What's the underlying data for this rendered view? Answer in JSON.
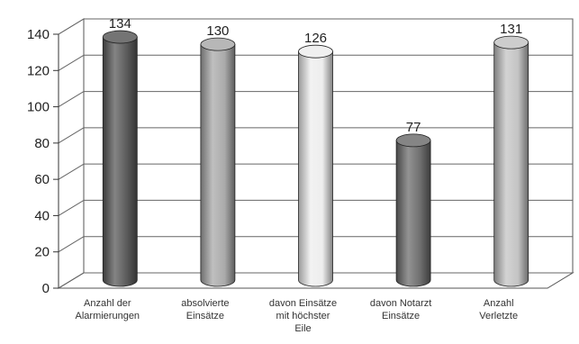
{
  "chart_data": {
    "type": "bar",
    "title": "",
    "xlabel": "",
    "ylabel": "",
    "ylim": [
      0,
      140
    ],
    "yticks": [
      0,
      20,
      40,
      60,
      80,
      100,
      120,
      140
    ],
    "grid": true,
    "categories": [
      "Anzahl der Alarmierungen",
      "absolvierte Einsätze",
      "davon Einsätze mit höchster Eile",
      "davon Notarzt Einsätze",
      "Anzahl Verletzte"
    ],
    "category_lines": [
      [
        "Anzahl der",
        "Alarmierungen"
      ],
      [
        "absolvierte",
        "Einsätze"
      ],
      [
        "davon Einsätze",
        "mit höchster",
        "Eile"
      ],
      [
        "davon Notarzt",
        "Einsätze"
      ],
      [
        "Anzahl",
        "Verletzte"
      ]
    ],
    "values": [
      134,
      130,
      126,
      77,
      131
    ],
    "data_labels": [
      "134",
      "130",
      "126",
      "77",
      "131"
    ],
    "bar_colors": [
      "#5b5b5b",
      "#aaaaaa",
      "#ededed",
      "#6f6f6f",
      "#c4c4c4"
    ],
    "bar_shape": "cylinder"
  }
}
